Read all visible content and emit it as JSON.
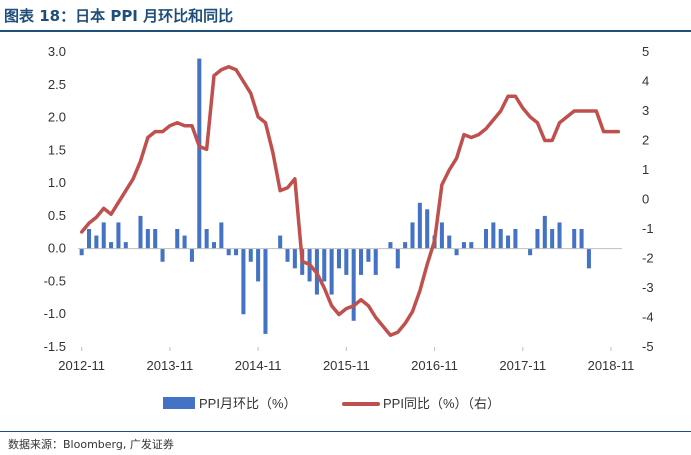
{
  "header": {
    "title": "图表 18：日本 PPI 月环比和同比"
  },
  "footer": {
    "source_label": "数据来源：",
    "source_text": "Bloomberg, 广发证券"
  },
  "colors": {
    "bar": "#4472c4",
    "line": "#c0504d",
    "axis": "#bfbfbf",
    "title": "#1f4e79"
  },
  "chart_data": {
    "type": "bar+line",
    "title": "",
    "x_tick_labels": [
      "2012-11",
      "2013-11",
      "2014-11",
      "2015-11",
      "2016-11",
      "2017-11",
      "2018-11"
    ],
    "y_left": {
      "min": -1.5,
      "max": 3.0,
      "step": 0.5,
      "tick_labels": [
        "3.0",
        "2.5",
        "2.0",
        "1.5",
        "1.0",
        "0.5",
        "0.0",
        "-0.5",
        "-1.0",
        "-1.5"
      ]
    },
    "y_right": {
      "min": -5,
      "max": 5,
      "step": 1,
      "tick_labels": [
        "5",
        "4",
        "3",
        "2",
        "1",
        "0",
        "-1",
        "-2",
        "-3",
        "-4",
        "-5"
      ]
    },
    "months": [
      "2012-11",
      "2012-12",
      "2013-01",
      "2013-02",
      "2013-03",
      "2013-04",
      "2013-05",
      "2013-06",
      "2013-07",
      "2013-08",
      "2013-09",
      "2013-10",
      "2013-11",
      "2013-12",
      "2014-01",
      "2014-02",
      "2014-03",
      "2014-04",
      "2014-05",
      "2014-06",
      "2014-07",
      "2014-08",
      "2014-09",
      "2014-10",
      "2014-11",
      "2014-12",
      "2015-01",
      "2015-02",
      "2015-03",
      "2015-04",
      "2015-05",
      "2015-06",
      "2015-07",
      "2015-08",
      "2015-09",
      "2015-10",
      "2015-11",
      "2015-12",
      "2016-01",
      "2016-02",
      "2016-03",
      "2016-04",
      "2016-05",
      "2016-06",
      "2016-07",
      "2016-08",
      "2016-09",
      "2016-10",
      "2016-11",
      "2016-12",
      "2017-01",
      "2017-02",
      "2017-03",
      "2017-04",
      "2017-05",
      "2017-06",
      "2017-07",
      "2017-08",
      "2017-09",
      "2017-10",
      "2017-11",
      "2017-12",
      "2018-01",
      "2018-02",
      "2018-03",
      "2018-04",
      "2018-05",
      "2018-06",
      "2018-07",
      "2018-08",
      "2018-09",
      "2018-10",
      "2018-11",
      "2018-12"
    ],
    "series": [
      {
        "name": "PPI月环比（%）",
        "axis": "left",
        "type": "bar",
        "values": [
          -0.1,
          0.3,
          0.2,
          0.4,
          0.1,
          0.4,
          0.1,
          0.0,
          0.5,
          0.3,
          0.3,
          -0.2,
          0.0,
          0.3,
          0.2,
          -0.2,
          2.9,
          0.3,
          0.1,
          0.4,
          -0.1,
          -0.1,
          -1.0,
          -0.2,
          -0.5,
          -1.3,
          0.0,
          0.2,
          -0.2,
          -0.3,
          -0.4,
          -0.5,
          -0.7,
          -0.5,
          -0.7,
          -0.3,
          -0.4,
          -1.1,
          -0.4,
          -0.2,
          -0.4,
          0.0,
          0.1,
          -0.3,
          0.1,
          0.4,
          0.7,
          0.6,
          0.2,
          0.4,
          0.2,
          -0.1,
          0.1,
          0.1,
          0.0,
          0.3,
          0.4,
          0.3,
          0.2,
          0.3,
          0.0,
          -0.1,
          0.3,
          0.5,
          0.3,
          0.4,
          0.0,
          0.3,
          0.3,
          -0.3,
          0.0,
          0.0,
          0.0,
          0.0
        ]
      },
      {
        "name": "PPI同比（%）（右）",
        "axis": "right",
        "type": "line",
        "values": [
          -1.1,
          -0.8,
          -0.6,
          -0.3,
          -0.5,
          -0.1,
          0.3,
          0.7,
          1.3,
          2.1,
          2.3,
          2.3,
          2.5,
          2.6,
          2.5,
          2.5,
          1.8,
          1.7,
          4.2,
          4.4,
          4.5,
          4.4,
          4.0,
          3.6,
          2.8,
          2.6,
          1.6,
          0.3,
          0.4,
          0.7,
          -2.1,
          -2.2,
          -2.5,
          -3.0,
          -3.6,
          -3.9,
          -3.7,
          -3.6,
          -3.4,
          -3.6,
          -4.0,
          -4.3,
          -4.6,
          -4.5,
          -4.2,
          -3.8,
          -3.1,
          -2.2,
          -1.4,
          0.5,
          1.0,
          1.4,
          2.2,
          2.1,
          2.2,
          2.4,
          2.7,
          3.0,
          3.5,
          3.5,
          3.1,
          2.8,
          2.6,
          2.0,
          2.0,
          2.6,
          2.8,
          3.0,
          3.0,
          3.0,
          3.0,
          2.3,
          2.3,
          2.3
        ]
      }
    ],
    "legend": {
      "position": "bottom",
      "items": [
        "PPI月环比（%）",
        "PPI同比（%）（右）"
      ]
    }
  }
}
